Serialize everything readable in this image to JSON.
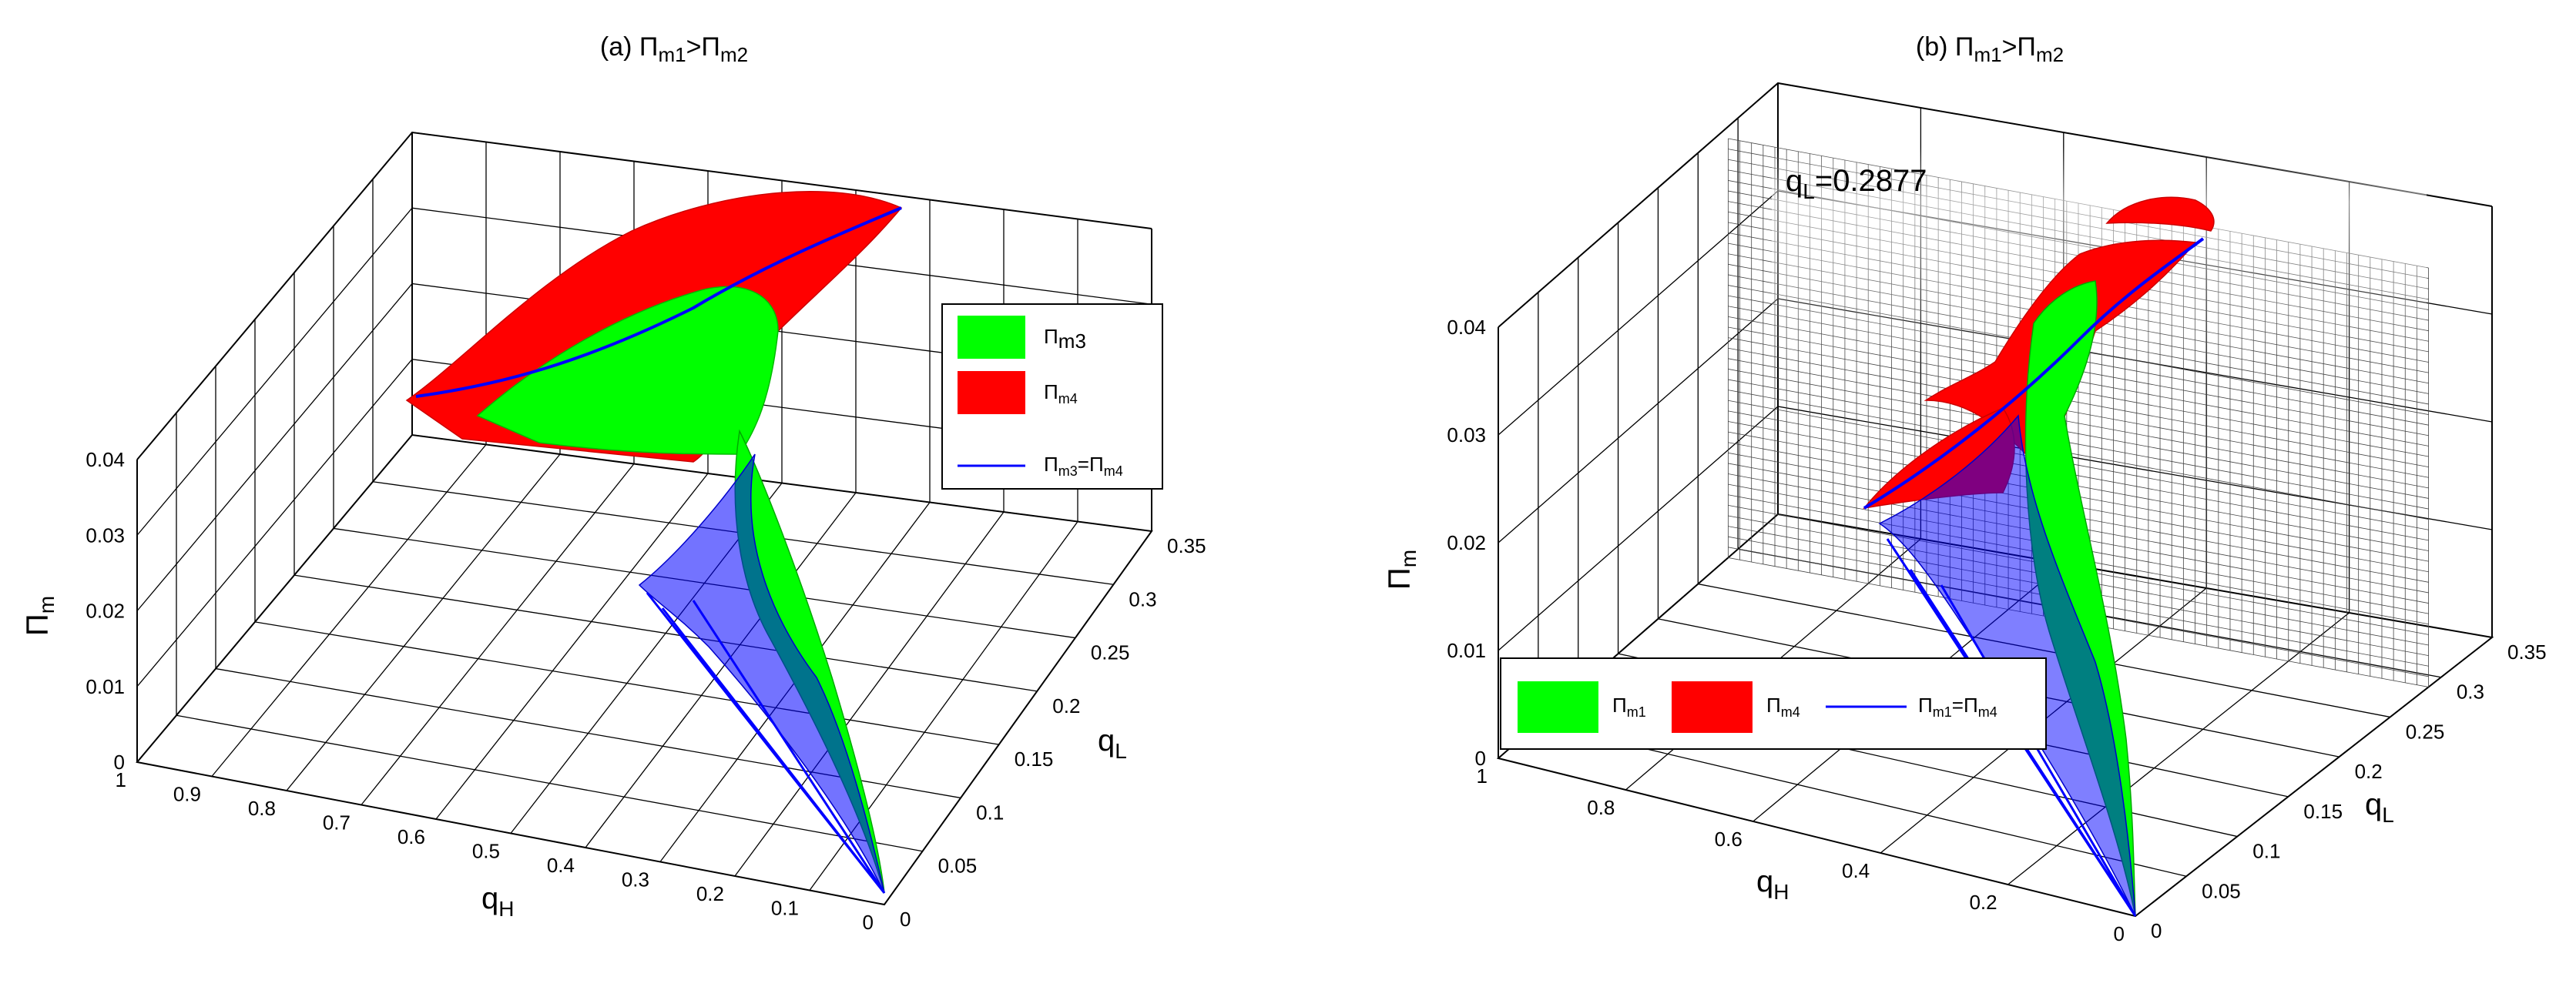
{
  "chart_data": [
    {
      "type": "surface3d",
      "panel": "a",
      "title_parts": [
        "(a) Π",
        "m1",
        ">Π",
        "m2"
      ],
      "xlabel_parts": [
        "q",
        "H"
      ],
      "ylabel_parts": [
        "q",
        "L"
      ],
      "zlabel_parts": [
        "Π",
        "m"
      ],
      "x_ticks": [
        "1",
        "0.9",
        "0.8",
        "0.7",
        "0.6",
        "0.5",
        "0.4",
        "0.3",
        "0.2",
        "0.1",
        "0"
      ],
      "y_ticks": [
        "0",
        "0.05",
        "0.1",
        "0.15",
        "0.2",
        "0.25",
        "0.3",
        "0.35"
      ],
      "z_ticks": [
        "0",
        "0.01",
        "0.02",
        "0.03",
        "0.04"
      ],
      "xlim": [
        0,
        1
      ],
      "ylim": [
        0,
        0.35
      ],
      "zlim": [
        0,
        0.04
      ],
      "grid": true,
      "legend_position": "right",
      "legend": [
        {
          "label_parts": [
            "Π",
            "m3"
          ],
          "color": "#00ff00",
          "kind": "patch"
        },
        {
          "label_parts": [
            "Π",
            "m4"
          ],
          "color": "#ff0000",
          "kind": "patch"
        },
        {
          "label_parts": [
            "Π",
            "m3",
            "=Π",
            "m4"
          ],
          "color": "#0000ff",
          "kind": "line"
        }
      ]
    },
    {
      "type": "surface3d",
      "panel": "b",
      "title_parts": [
        "(b) Π",
        "m1",
        ">Π",
        "m2"
      ],
      "xlabel_parts": [
        "q",
        "H"
      ],
      "ylabel_parts": [
        "q",
        "L"
      ],
      "zlabel_parts": [
        "Π",
        "m"
      ],
      "x_ticks": [
        "1",
        "0.8",
        "0.6",
        "0.4",
        "0.2",
        "0"
      ],
      "y_ticks": [
        "0",
        "0.05",
        "0.1",
        "0.15",
        "0.2",
        "0.25",
        "0.3",
        "0.35"
      ],
      "z_ticks": [
        "0",
        "0.01",
        "0.02",
        "0.03",
        "0.04"
      ],
      "xlim": [
        0,
        1
      ],
      "ylim": [
        0,
        0.35
      ],
      "zlim": [
        0,
        0.04
      ],
      "grid": true,
      "legend_position": "bottom-left",
      "annotation_parts": [
        "q",
        "L",
        "=0.2877"
      ],
      "legend": [
        {
          "label_parts": [
            "Π",
            "m1"
          ],
          "color": "#00ff00",
          "kind": "patch"
        },
        {
          "label_parts": [
            "Π",
            "m4"
          ],
          "color": "#ff0000",
          "kind": "patch"
        },
        {
          "label_parts": [
            "Π",
            "m1",
            "=Π",
            "m4"
          ],
          "color": "#0000ff",
          "kind": "line"
        }
      ]
    }
  ]
}
